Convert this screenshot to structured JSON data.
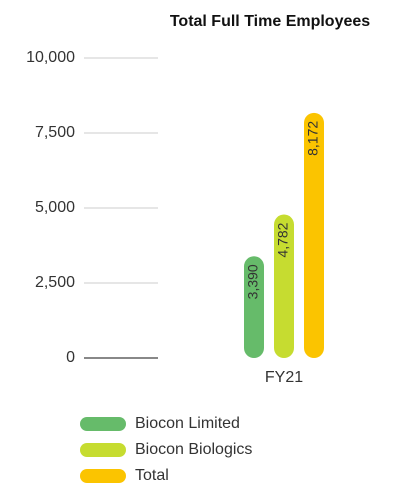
{
  "chart_data": {
    "type": "bar",
    "title": "Total Full Time Employees",
    "categories": [
      "FY21"
    ],
    "series": [
      {
        "name": "Biocon Limited",
        "color": "#66bb6a",
        "values": [
          3390
        ],
        "value_labels": [
          "3,390"
        ]
      },
      {
        "name": "Biocon Biologics",
        "color": "#c6dc30",
        "values": [
          4782
        ],
        "value_labels": [
          "4,782"
        ]
      },
      {
        "name": "Total",
        "color": "#fbc400",
        "values": [
          8172
        ],
        "value_labels": [
          "8,172"
        ]
      }
    ],
    "ylim": [
      0,
      10000
    ],
    "yticks": [
      0,
      {
        "value": 2500,
        "label": "2,500"
      },
      {
        "value": 5000,
        "label": "5,000"
      },
      {
        "value": 7500,
        "label": "7,500"
      },
      {
        "value": 10000,
        "label": "10,000"
      }
    ],
    "grid": true
  }
}
